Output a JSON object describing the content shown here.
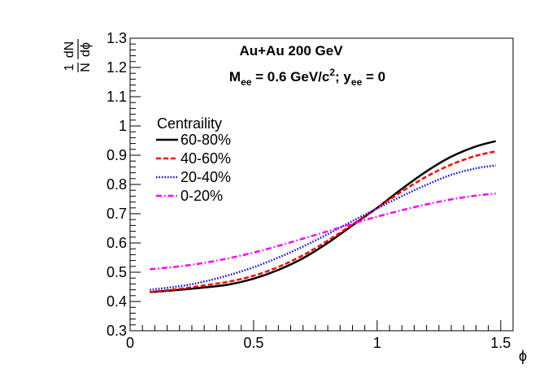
{
  "chart_data": {
    "type": "line",
    "title_line1": "Au+Au 200 GeV",
    "title_line2": {
      "m_main": "M",
      "m_sub": "ee",
      "m_value": " = 0.6 GeV/c",
      "m_sup": "2",
      "m_sep": "; y",
      "y_sub": "ee",
      "y_value": " = 0"
    },
    "xlabel": "ϕ",
    "ylabel": {
      "left_num": "1",
      "left_den": "N",
      "right_num": "dN",
      "right_den": "dϕ"
    },
    "xlim": [
      0,
      1.55
    ],
    "ylim": [
      0.3,
      1.3
    ],
    "xticks": [
      0,
      0.5,
      1,
      1.5
    ],
    "xtick_labels": [
      "0",
      "0.5",
      "1",
      "1.5"
    ],
    "yticks": [
      0.3,
      0.4,
      0.5,
      0.6,
      0.7,
      0.8,
      0.9,
      1.0,
      1.1,
      1.2,
      1.3
    ],
    "ytick_labels": [
      "0.3",
      "0.4",
      "0.5",
      "0.6",
      "0.7",
      "0.8",
      "0.9",
      "1",
      "1.1",
      "1.2",
      "1.3"
    ],
    "grid": false,
    "legend_title": "Centraility",
    "legend_position": "upper-left",
    "series": [
      {
        "name": "60-80%",
        "color": "#000000",
        "dash": "solid",
        "x": [
          0.08,
          0.2,
          0.3,
          0.4,
          0.5,
          0.6,
          0.7,
          0.8,
          0.9,
          1.0,
          1.1,
          1.2,
          1.3,
          1.4,
          1.48
        ],
        "y": [
          0.432,
          0.44,
          0.448,
          0.458,
          0.478,
          0.508,
          0.548,
          0.6,
          0.66,
          0.72,
          0.785,
          0.845,
          0.895,
          0.93,
          0.948
        ]
      },
      {
        "name": "40-60%",
        "color": "#ff0000",
        "dash": "dashed",
        "x": [
          0.08,
          0.2,
          0.3,
          0.4,
          0.5,
          0.6,
          0.7,
          0.8,
          0.9,
          1.0,
          1.1,
          1.2,
          1.3,
          1.4,
          1.48
        ],
        "y": [
          0.432,
          0.443,
          0.455,
          0.468,
          0.488,
          0.518,
          0.558,
          0.608,
          0.663,
          0.72,
          0.776,
          0.827,
          0.868,
          0.898,
          0.913
        ]
      },
      {
        "name": "20-40%",
        "color": "#0000ff",
        "dash": "dotted",
        "x": [
          0.08,
          0.2,
          0.3,
          0.4,
          0.5,
          0.6,
          0.7,
          0.8,
          0.9,
          1.0,
          1.1,
          1.2,
          1.3,
          1.4,
          1.48
        ],
        "y": [
          0.44,
          0.452,
          0.468,
          0.49,
          0.517,
          0.55,
          0.588,
          0.63,
          0.675,
          0.718,
          0.76,
          0.799,
          0.833,
          0.855,
          0.865
        ]
      },
      {
        "name": "0-20%",
        "color": "#ff00ff",
        "dash": "dashdot",
        "x": [
          0.08,
          0.2,
          0.3,
          0.4,
          0.5,
          0.6,
          0.7,
          0.8,
          0.9,
          1.0,
          1.1,
          1.2,
          1.3,
          1.4,
          1.48
        ],
        "y": [
          0.51,
          0.52,
          0.532,
          0.548,
          0.567,
          0.59,
          0.615,
          0.64,
          0.666,
          0.69,
          0.712,
          0.732,
          0.749,
          0.762,
          0.769
        ]
      }
    ]
  }
}
